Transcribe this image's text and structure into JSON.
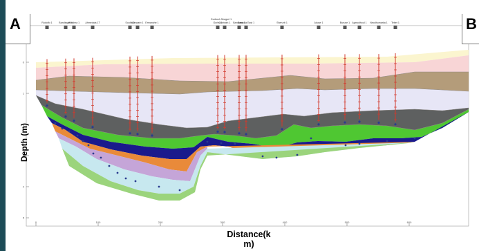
{
  "panel_labels": {
    "left": "A",
    "right": "B"
  },
  "axis": {
    "y_label": "Depth (m)",
    "x_label": "Distance(k\nm)"
  },
  "colors": {
    "background": "#1d4c57",
    "well_line": "#d2392c",
    "layer_top_yellow": "#fbf5cf",
    "layer_pink": "#f8d5d6",
    "layer_tan": "#b49c7a",
    "layer_lavender": "#e7e6f6",
    "layer_grey": "#5e6060",
    "layer_green": "#4fc732",
    "layer_navy": "#1a1a8c",
    "layer_lightblue": "#c7e8ef",
    "layer_lightgreen": "#9bd47c"
  },
  "wells": [
    {
      "name": "Rudolfo 1",
      "x": 68
    },
    {
      "name": "Bandinger II",
      "x": 95
    },
    {
      "name": "Windma 1",
      "x": 107
    },
    {
      "name": "Ahmedaia 1T",
      "x": 134
    },
    {
      "name": "Soulfa 3",
      "x": 188
    },
    {
      "name": "Marwarb 1",
      "x": 199
    },
    {
      "name": "Ermanshe 1",
      "x": 220
    },
    {
      "name": "Gurbu 1",
      "x": 315
    },
    {
      "name": "Gorbush 1",
      "x": 325
    },
    {
      "name": "Bardoma 1",
      "x": 346
    },
    {
      "name": "Bandola East 1",
      "x": 356
    },
    {
      "name": "Sherurb 1",
      "x": 408
    },
    {
      "name": "Akuse 1",
      "x": 461
    },
    {
      "name": "Buruse 1",
      "x": 499
    },
    {
      "name": "Agmodhoul 1",
      "x": 520
    },
    {
      "name": "Neodhumarka 1",
      "x": 548
    },
    {
      "name": "Tebet 1",
      "x": 572
    }
  ],
  "top_header_label": "Gurbush Seagurl 1",
  "y_ticks": [
    "0",
    "1",
    "2",
    "3",
    "4",
    "5"
  ],
  "x_ticks": [
    "0",
    "100",
    "200",
    "300",
    "400",
    "500",
    "600",
    "700"
  ]
}
